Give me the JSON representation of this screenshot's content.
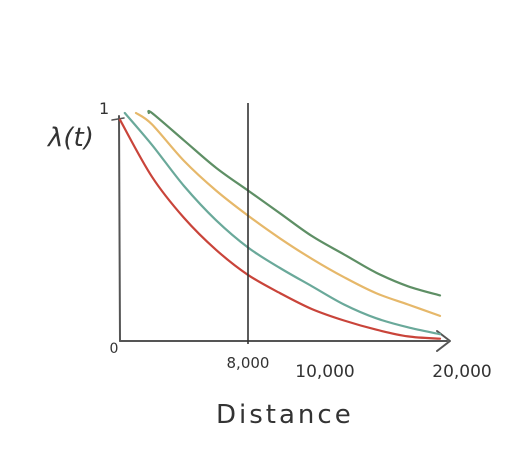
{
  "chart_data": {
    "type": "line",
    "title": "",
    "ylabel": "λ(t)",
    "xlabel": "Distance",
    "xlim": [
      0,
      20000
    ],
    "ylim": [
      0,
      1
    ],
    "grid": false,
    "legend": "none",
    "x_ticks": [
      {
        "value": 0,
        "label": "0"
      },
      {
        "value": 8000,
        "label": "8,000"
      },
      {
        "value": 10000,
        "label": "10,000"
      },
      {
        "value": 20000,
        "label": "20,000"
      }
    ],
    "y_ticks": [
      {
        "value": 1,
        "label": "1"
      }
    ],
    "vline": {
      "x": 8000
    },
    "x": [
      0,
      2000,
      4000,
      6000,
      8000,
      10000,
      12000,
      14000,
      16000,
      18000,
      20000
    ],
    "series": [
      {
        "color": "#c9443a",
        "values": [
          0.97,
          0.72,
          0.54,
          0.4,
          0.29,
          0.21,
          0.14,
          0.09,
          0.05,
          0.02,
          0.01
        ]
      },
      {
        "color": "#6aa99a",
        "values": [
          1.0,
          0.86,
          0.68,
          0.53,
          0.41,
          0.32,
          0.24,
          0.16,
          0.1,
          0.06,
          0.03
        ]
      },
      {
        "color": "#e6b86a",
        "values": [
          1.0,
          0.95,
          0.79,
          0.66,
          0.55,
          0.45,
          0.36,
          0.28,
          0.21,
          0.16,
          0.11
        ]
      },
      {
        "color": "#5e8f65",
        "values": [
          1.0,
          1.0,
          0.88,
          0.76,
          0.66,
          0.56,
          0.46,
          0.38,
          0.3,
          0.24,
          0.2
        ]
      }
    ]
  }
}
